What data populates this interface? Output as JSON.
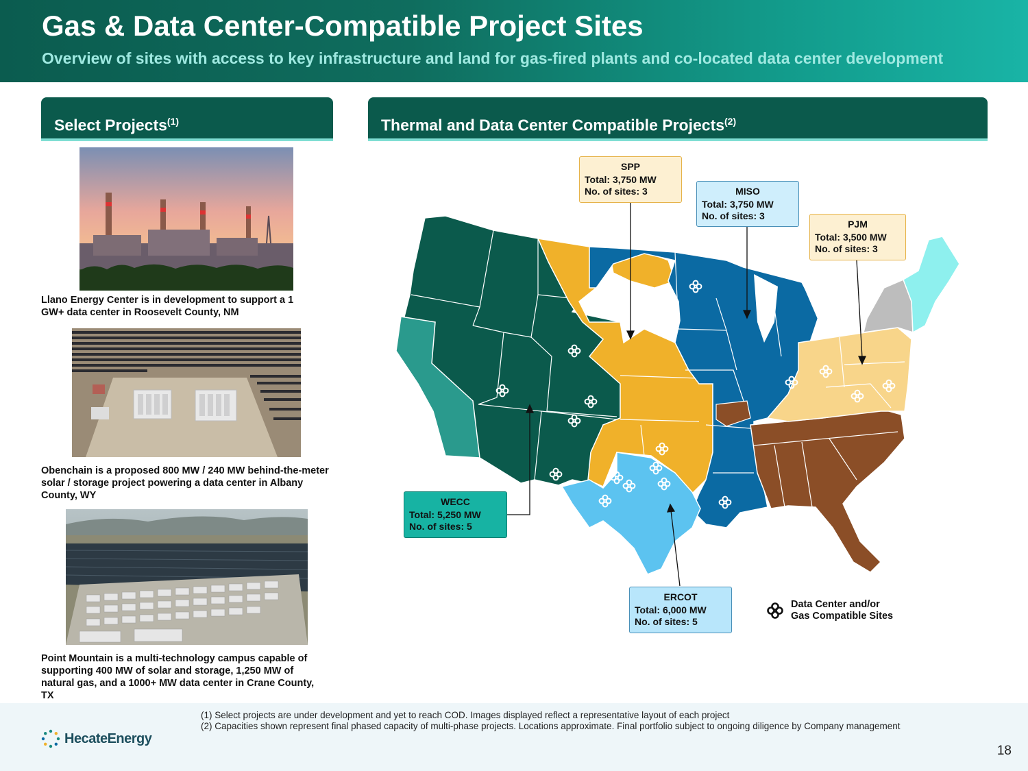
{
  "header": {
    "title": "Gas & Data Center-Compatible Project Sites",
    "subtitle": "Overview of sites with access to key infrastructure and land for gas-fired plants and co-located data center development"
  },
  "left_panel": {
    "title": "Select Projects",
    "title_sup": "(1)",
    "projects": [
      {
        "caption": "Llano Energy Center is in development to support a 1 GW+ data center in Roosevelt County, NM",
        "image": "gas-power-plant-sunset"
      },
      {
        "caption": "Obenchain is a proposed 800 MW / 240 MW behind-the-meter solar / storage project powering a data center in Albany County, WY",
        "image": "solar-storage-aerial"
      },
      {
        "caption": "Point Mountain is a multi-technology campus capable of supporting 400 MW of solar and storage, 1,250 MW of natural gas, and a 1000+ MW data center in Crane County, TX",
        "image": "campus-render-aerial"
      }
    ]
  },
  "right_panel": {
    "title": "Thermal and Data Center Compatible Projects",
    "title_sup": "(2)"
  },
  "regions": [
    {
      "name": "SPP",
      "total": "Total: 3,750 MW",
      "sites": "No. of sites: 3",
      "color": "#f0b12a",
      "box_color": "#fdf0d2",
      "border": "#e6b34a"
    },
    {
      "name": "MISO",
      "total": "Total: 3,750 MW",
      "sites": "No. of sites: 3",
      "color": "#0b6aa3",
      "box_color": "#cfeefc",
      "border": "#4a90b8"
    },
    {
      "name": "PJM",
      "total": "Total: 3,500 MW",
      "sites": "No. of sites: 3",
      "color": "#f8d58a",
      "box_color": "#fdf0d2",
      "border": "#e6b34a"
    },
    {
      "name": "WECC",
      "total": "Total: 5,250 MW",
      "sites": "No. of sites: 5",
      "color": "#0b5a4c",
      "box_color": "#17b3a3",
      "border": "#0b7d70"
    },
    {
      "name": "ERCOT",
      "total": "Total: 6,000 MW",
      "sites": "No. of sites: 5",
      "color": "#5cc3f0",
      "box_color": "#b8e6fb",
      "border": "#4a90b8"
    }
  ],
  "other_region_colors": {
    "caiso": "#2a9a8d",
    "southeast": "#8b4e27",
    "isone": "#8ef0ee",
    "nyiso": "#bdbdbd"
  },
  "legend": {
    "label": "Data Center and/or Gas Compatible Sites",
    "icon": "data-center-site-icon"
  },
  "footnotes": [
    "(1)  Select projects are under development and yet to reach COD. Images displayed reflect a representative layout of each project",
    "(2)  Capacities shown represent final phased capacity of multi-phase projects. Locations approximate. Final portfolio subject to ongoing diligence by Company management"
  ],
  "logo": {
    "text": "HecateEnergy"
  },
  "page_number": "18"
}
